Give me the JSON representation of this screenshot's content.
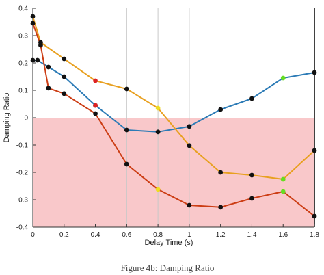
{
  "chart_data": {
    "type": "line",
    "xlabel": "Delay Time (s)",
    "ylabel": "Damping Ratio",
    "xlim": [
      0,
      1.8
    ],
    "ylim": [
      -0.4,
      0.4
    ],
    "xticks": [
      "0",
      "0.2",
      "0.4",
      "0.6",
      "0.8",
      "1",
      "1.2",
      "1.4",
      "1.6",
      "1.8"
    ],
    "yticks": [
      "0.4",
      "0.3",
      "0.2",
      "0.1",
      "0",
      "-0.1",
      "-0.2",
      "-0.3",
      "-0.4"
    ],
    "grid_x": [
      0.6,
      0.8,
      1.0,
      1.8
    ],
    "shaded_region": {
      "y_from": -0.4,
      "y_to": 0,
      "color": "#f9c8ca"
    },
    "series": [
      {
        "color": "#2c7bb6",
        "points": [
          [
            0,
            0.21
          ],
          [
            0.03,
            0.21
          ],
          [
            0.1,
            0.185
          ],
          [
            0.2,
            0.15
          ],
          [
            0.4,
            0.045
          ],
          [
            0.6,
            -0.045
          ],
          [
            0.8,
            -0.052
          ],
          [
            1.0,
            -0.032
          ],
          [
            1.2,
            0.03
          ],
          [
            1.4,
            0.07
          ],
          [
            1.6,
            0.145
          ],
          [
            1.8,
            0.165
          ]
        ],
        "marker_colors": [
          "#111111",
          "#111111",
          "#111111",
          "#111111",
          "#111111",
          "#111111",
          "#111111",
          "#111111",
          "#111111",
          "#111111",
          "#66dd22",
          "#111111"
        ]
      },
      {
        "color": "#e8a020",
        "points": [
          [
            0,
            0.37
          ],
          [
            0.05,
            0.275
          ],
          [
            0.2,
            0.215
          ],
          [
            0.4,
            0.135
          ],
          [
            0.6,
            0.105
          ],
          [
            0.8,
            0.035
          ],
          [
            1.0,
            -0.102
          ],
          [
            1.2,
            -0.2
          ],
          [
            1.4,
            -0.21
          ],
          [
            1.6,
            -0.225
          ],
          [
            1.8,
            -0.12
          ]
        ],
        "marker_colors": [
          "#111111",
          "#111111",
          "#111111",
          "#dd2222",
          "#111111",
          "#eedd22",
          "#111111",
          "#111111",
          "#111111",
          "#66dd22",
          "#111111"
        ]
      },
      {
        "color": "#cc3d14",
        "points": [
          [
            0,
            0.345
          ],
          [
            0.05,
            0.265
          ],
          [
            0.1,
            0.108
          ],
          [
            0.2,
            0.088
          ],
          [
            0.4,
            0.015
          ],
          [
            0.6,
            -0.17
          ],
          [
            0.8,
            -0.262
          ],
          [
            1.0,
            -0.32
          ],
          [
            1.2,
            -0.327
          ],
          [
            1.4,
            -0.295
          ],
          [
            1.6,
            -0.27
          ],
          [
            1.8,
            -0.36
          ]
        ],
        "marker_colors": [
          "#111111",
          "#111111",
          "#111111",
          "#111111",
          "#111111",
          "#111111",
          "#eedd22",
          "#111111",
          "#111111",
          "#111111",
          "#66dd22",
          "#111111"
        ]
      }
    ],
    "extra_markers": [
      {
        "x": 0.4,
        "y": 0.045,
        "color": "#dd2222"
      }
    ]
  },
  "caption": "Figure 4b: Damping Ratio"
}
